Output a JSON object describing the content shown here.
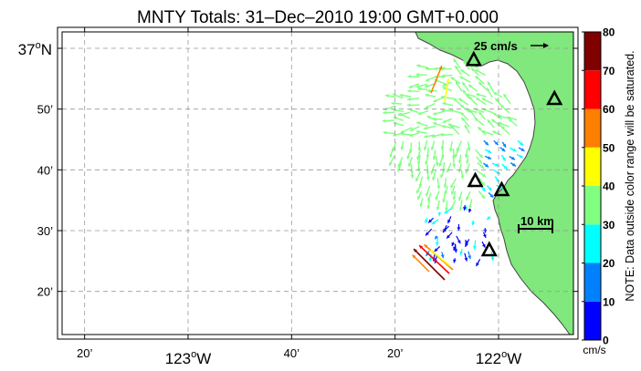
{
  "title": "MNTY Totals: 31–Dec–2010 19:00 GMT+0.000",
  "lat_labels": [
    {
      "deg": "37",
      "suffix": "N",
      "lat": 37.0
    },
    {
      "text": "50’",
      "lat": 36.8333
    },
    {
      "text": "40’",
      "lat": 36.6667
    },
    {
      "text": "30’",
      "lat": 36.5
    },
    {
      "text": "20’",
      "lat": 36.3333
    }
  ],
  "lon_labels": [
    {
      "text": "20’",
      "lon": -123.3333
    },
    {
      "deg": "123",
      "suffix": "W",
      "lon": -123.0
    },
    {
      "text": "40’",
      "lon": -122.6667
    },
    {
      "text": "20’",
      "lon": -122.3333
    },
    {
      "deg": "122",
      "suffix": "W",
      "lon": -122.0
    }
  ],
  "scale_vector_label": "25 cm/s",
  "scale_bar_label": "10 km",
  "colorbar": {
    "ticks": [
      "0",
      "10",
      "20",
      "30",
      "40",
      "50",
      "60",
      "70",
      "80"
    ],
    "colors": [
      "#0000ff",
      "#0080ff",
      "#00ffff",
      "#80ff80",
      "#ffff00",
      "#ff8000",
      "#ff0000",
      "#800000"
    ],
    "unit": "cm/s",
    "note": "NOTE: Data outside color range will be saturated."
  },
  "colors": {
    "land": "#80e87c",
    "coast": "#444444",
    "grid": "#999999"
  },
  "sites": [
    {
      "name": "site-1",
      "lon": -122.08,
      "lat": 36.967
    },
    {
      "name": "site-2",
      "lon": -121.82,
      "lat": 36.86
    },
    {
      "name": "site-3",
      "lon": -122.075,
      "lat": 36.635
    },
    {
      "name": "site-4",
      "lon": -121.99,
      "lat": 36.61
    },
    {
      "name": "site-5",
      "lon": -122.03,
      "lat": 36.445
    }
  ]
}
